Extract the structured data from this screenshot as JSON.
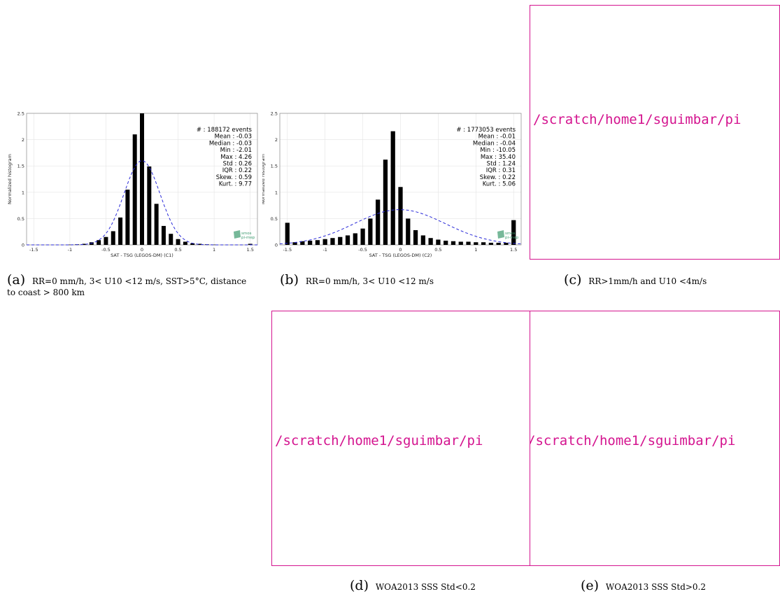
{
  "colors": {
    "bar": "#000000",
    "fit": "#2a2ad8",
    "placeholder": "#d4148f",
    "axis": "#888888",
    "logo": "#3c9a6e"
  },
  "chart_data": [
    {
      "type": "bar",
      "xlabel": "SAT - TSG (LEGOS-DM) (C1)",
      "ylabel": "Normalized histogram",
      "xlim": [
        -1.6,
        1.6
      ],
      "ylim": [
        0,
        2.5
      ],
      "xticks": [
        "-1.5",
        "-1",
        "-0.5",
        "0",
        "0.5",
        "1",
        "1.5"
      ],
      "yticks": [
        "0",
        "0.5",
        "1",
        "1.5",
        "2",
        "2.5"
      ],
      "bin_width": 0.1,
      "bin_centers": [
        -1.5,
        -1.4,
        -1.3,
        -1.2,
        -1.1,
        -1.0,
        -0.9,
        -0.8,
        -0.7,
        -0.6,
        -0.5,
        -0.4,
        -0.3,
        -0.2,
        -0.1,
        0.0,
        0.1,
        0.2,
        0.3,
        0.4,
        0.5,
        0.6,
        0.7,
        0.8,
        0.9,
        1.0,
        1.1,
        1.2,
        1.3,
        1.4,
        1.5
      ],
      "values": [
        0,
        0,
        0,
        0,
        0,
        0.005,
        0.01,
        0.02,
        0.05,
        0.09,
        0.15,
        0.26,
        0.52,
        1.05,
        2.1,
        2.5,
        1.49,
        0.78,
        0.36,
        0.21,
        0.11,
        0.06,
        0.03,
        0.02,
        0.01,
        0.005,
        0,
        0,
        0,
        0,
        0.02
      ],
      "fit": {
        "name": "gaussian",
        "mean": 0,
        "std": 0.25,
        "peak": 1.6
      },
      "stats": [
        "# : 188172 events",
        "Mean : -0.03",
        "Median : -0.03",
        "Min : -2.01",
        "Max : 4.26",
        "Std : 0.26",
        "IQR : 0.22",
        "Skew. : 0.59",
        "Kurt. : 9.77"
      ],
      "logo": [
        "smos",
        "pi-mep"
      ]
    },
    {
      "type": "bar",
      "xlabel": "SAT - TSG (LEGOS-DM) (C2)",
      "ylabel": "Normalized histogram",
      "xlim": [
        -1.6,
        1.6
      ],
      "ylim": [
        0,
        2.5
      ],
      "xticks": [
        "-1.5",
        "-1",
        "-0.5",
        "0",
        "0.5",
        "1",
        "1.5"
      ],
      "yticks": [
        "0",
        "0.5",
        "1",
        "1.5",
        "2",
        "2.5"
      ],
      "bin_width": 0.1,
      "bin_centers": [
        -1.5,
        -1.4,
        -1.3,
        -1.2,
        -1.1,
        -1.0,
        -0.9,
        -0.8,
        -0.7,
        -0.6,
        -0.5,
        -0.4,
        -0.3,
        -0.2,
        -0.1,
        0.0,
        0.1,
        0.2,
        0.3,
        0.4,
        0.5,
        0.6,
        0.7,
        0.8,
        0.9,
        1.0,
        1.1,
        1.2,
        1.3,
        1.4,
        1.5
      ],
      "values": [
        0.42,
        0.05,
        0.07,
        0.08,
        0.09,
        0.11,
        0.13,
        0.15,
        0.18,
        0.22,
        0.31,
        0.5,
        0.86,
        1.62,
        2.16,
        1.1,
        0.5,
        0.28,
        0.18,
        0.13,
        0.1,
        0.08,
        0.07,
        0.06,
        0.06,
        0.05,
        0.05,
        0.04,
        0.04,
        0.04,
        0.47
      ],
      "fit": {
        "name": "gaussian",
        "mean": -0.01,
        "std": 0.6,
        "peak": 0.67
      },
      "stats": [
        "# : 1773053 events",
        "Mean : -0.01",
        "Median : -0.04",
        "Min : -10.05",
        "Max : 35.40",
        "Std : 1.24",
        "IQR : 0.31",
        "Skew. : 0.22",
        "Kurt. : 5.06"
      ],
      "logo": [
        "smos",
        "pi-mep"
      ]
    }
  ],
  "captions": {
    "a": {
      "tag": "(a)",
      "text": "RR=0 mm/h, 3< U10 <12 m/s, SST>5°C, distance to coast > 800 km"
    },
    "b": {
      "tag": "(b)",
      "text": "RR=0 mm/h, 3< U10 <12 m/s"
    },
    "c": {
      "tag": "(c)",
      "text": "RR>1mm/h and U10 <4m/s"
    },
    "d": {
      "tag": "(d)",
      "text": "WOA2013 SSS Std<0.2"
    },
    "e": {
      "tag": "(e)",
      "text": "WOA2013 SSS Std>0.2"
    }
  },
  "placeholders": {
    "c": "/scratch/home1/sguimbar/pi",
    "d": "/scratch/home1/sguimbar/pi",
    "e": "/scratch/home1/sguimbar/pi"
  }
}
